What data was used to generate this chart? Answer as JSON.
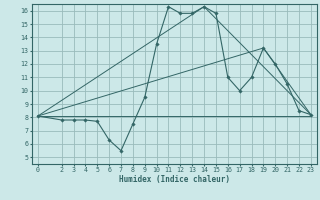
{
  "xlabel": "Humidex (Indice chaleur)",
  "xlim": [
    -0.5,
    23.5
  ],
  "ylim": [
    4.5,
    16.5
  ],
  "yticks": [
    5,
    6,
    7,
    8,
    9,
    10,
    11,
    12,
    13,
    14,
    15,
    16
  ],
  "xticks": [
    0,
    2,
    3,
    4,
    5,
    6,
    7,
    8,
    9,
    10,
    11,
    12,
    13,
    14,
    15,
    16,
    17,
    18,
    19,
    20,
    21,
    22,
    23
  ],
  "bg_color": "#cce8e8",
  "line_color": "#336666",
  "grid_color": "#99bbbb",
  "line1_x": [
    0,
    2,
    3,
    4,
    5,
    6,
    7,
    8,
    9,
    10,
    11,
    12,
    13,
    14,
    15,
    16,
    17,
    18,
    19,
    20,
    21,
    22,
    23
  ],
  "line1_y": [
    8.1,
    7.8,
    7.8,
    7.8,
    7.7,
    6.3,
    5.5,
    7.5,
    9.5,
    13.5,
    16.3,
    15.8,
    15.8,
    16.3,
    15.8,
    11.0,
    10.0,
    11.0,
    13.2,
    12.0,
    10.5,
    8.5,
    8.2
  ],
  "line2_x": [
    0,
    23
  ],
  "line2_y": [
    8.1,
    8.1
  ],
  "line3_x": [
    0,
    14,
    23
  ],
  "line3_y": [
    8.1,
    16.3,
    8.2
  ],
  "line4_x": [
    0,
    19,
    23
  ],
  "line4_y": [
    8.1,
    13.2,
    8.2
  ]
}
